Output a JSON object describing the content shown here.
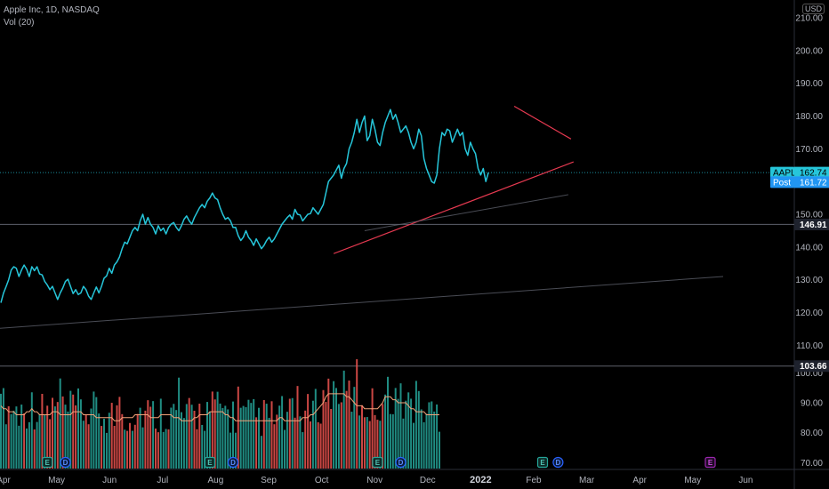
{
  "legend": {
    "symbol": "Apple Inc, 1D, NASDAQ",
    "indicator": "Vol (20)"
  },
  "currency": "USD",
  "colors": {
    "price": "#26c6da",
    "trend": "#e53950",
    "up": "#26a69a",
    "down": "#ef5350",
    "vol_ma": "#f4a37a",
    "bg": "#000000",
    "earnings": "#26a69a",
    "dividend": "#2962ff",
    "upcoming_earnings": "#9c27b0"
  },
  "chart_data": {
    "type": "line",
    "title": "Apple Inc, 1D, NASDAQ",
    "x_labels": [
      "Apr",
      "May",
      "Jun",
      "Jul",
      "Aug",
      "Sep",
      "Oct",
      "Nov",
      "Dec",
      "2022",
      "Feb",
      "Mar",
      "Apr",
      "May",
      "Jun"
    ],
    "y_ticks": [
      70,
      80,
      90,
      100,
      110,
      120,
      130,
      140,
      150,
      160,
      170,
      180,
      190,
      200,
      210
    ],
    "price_ylim": [
      98,
      215
    ],
    "price_series": {
      "name": "AAPL",
      "values": [
        123.0,
        125.9,
        127.9,
        130.0,
        133.0,
        134.0,
        133.5,
        131.0,
        133.0,
        134.5,
        133.2,
        131.0,
        134.0,
        132.8,
        134.0,
        131.8,
        131.5,
        129.5,
        128.4,
        127.0,
        128.0,
        126.0,
        124.0,
        126.0,
        127.5,
        129.5,
        130.2,
        128.0,
        125.8,
        127.0,
        125.5,
        126.0,
        128.0,
        127.0,
        125.0,
        124.0,
        126.0,
        127.8,
        126.0,
        128.0,
        130.5,
        131.2,
        133.5,
        132.0,
        134.5,
        135.5,
        137.0,
        139.5,
        141.5,
        141.0,
        143.0,
        145.0,
        146.0,
        145.0,
        148.0,
        150.0,
        147.0,
        149.0,
        147.0,
        146.0,
        144.0,
        146.5,
        145.0,
        145.8,
        144.0,
        146.0,
        147.0,
        147.5,
        146.0,
        145.0,
        146.5,
        148.5,
        149.5,
        148.0,
        147.0,
        149.0,
        150.5,
        152.0,
        153.0,
        152.0,
        154.0,
        155.0,
        156.5,
        155.0,
        154.5,
        152.0,
        150.0,
        148.5,
        149.0,
        148.0,
        146.0,
        146.0,
        143.5,
        142.0,
        143.0,
        145.0,
        143.0,
        142.0,
        140.5,
        142.5,
        141.0,
        139.5,
        140.5,
        142.0,
        143.0,
        141.5,
        142.5,
        144.0,
        145.5,
        147.0,
        148.0,
        149.0,
        149.8,
        148.5,
        151.5,
        150.0,
        149.8,
        148.0,
        149.0,
        150.0,
        150.2,
        152.0,
        151.0,
        150.0,
        151.5,
        153.0,
        156.5,
        160.0,
        161.0,
        162.0,
        163.5,
        165.0,
        161.0,
        164.0,
        165.5,
        170.0,
        172.0,
        175.0,
        179.0,
        175.0,
        178.0,
        180.0,
        172.5,
        174.0,
        179.0,
        176.0,
        172.0,
        171.0,
        175.0,
        178.0,
        180.0,
        182.0,
        179.0,
        180.5,
        178.0,
        175.0,
        176.0,
        177.0,
        175.0,
        172.0,
        170.0,
        172.0,
        176.0,
        174.0,
        167.0,
        164.0,
        162.0,
        160.0,
        159.5,
        162.0,
        170.0,
        175.0,
        174.0,
        176.0,
        175.5,
        172.0,
        174.0,
        176.0,
        174.0,
        175.0,
        170.0,
        168.0,
        172.0,
        170.0,
        168.5,
        164.0,
        162.0,
        164.0,
        160.0,
        162.74
      ]
    },
    "price_labels": [
      {
        "text": "AAPL",
        "value": "162.74",
        "price": 162.74
      },
      {
        "text": "Post",
        "value": "161.72",
        "price": 161.72
      },
      {
        "text": "",
        "value": "146.91",
        "price": 146.91
      }
    ],
    "volume_level": {
      "value": "103.66",
      "price": 103.66
    },
    "volume": {
      "ylim": [
        68,
        112
      ],
      "ma_values": [
        89,
        88,
        88,
        87,
        87,
        87,
        86,
        86,
        86,
        86,
        87,
        87,
        88,
        87,
        87,
        86,
        86,
        86,
        86,
        86,
        87,
        87,
        87,
        86,
        86,
        86,
        86,
        86,
        87,
        87,
        87,
        87,
        86,
        86,
        86,
        86,
        86,
        85,
        85,
        85,
        85,
        85,
        85,
        85,
        84,
        84,
        84,
        85,
        85,
        85,
        85,
        85,
        86,
        86,
        86,
        86,
        86,
        86,
        85,
        85,
        85,
        85,
        86,
        86,
        86,
        86,
        86,
        85,
        85,
        85,
        84,
        84,
        84,
        84,
        84,
        85,
        85,
        86,
        86,
        86,
        86,
        87,
        87,
        87,
        87,
        87,
        87,
        86,
        86,
        85,
        85,
        84,
        84,
        84,
        84,
        84,
        84,
        84,
        84,
        84,
        84,
        84,
        84,
        84,
        84,
        84,
        84,
        84,
        85,
        85,
        84,
        84,
        84,
        84,
        84,
        84,
        84,
        85,
        85,
        85,
        86,
        86,
        87,
        88,
        89,
        90,
        92,
        93,
        93,
        93,
        93,
        93,
        93,
        93,
        92,
        92,
        91,
        90,
        89,
        89,
        89,
        88,
        88,
        88,
        88,
        88,
        88,
        89,
        90,
        92,
        92,
        92,
        91,
        91,
        90,
        90,
        90,
        90,
        89,
        88,
        88,
        87,
        87,
        87,
        87,
        86,
        86,
        86,
        86,
        86,
        86
      ]
    },
    "trendlines": [
      {
        "name": "upper-trend",
        "from": {
          "i": 199,
          "price": 183
        },
        "to": {
          "i": 221,
          "price": 173
        }
      },
      {
        "name": "lower-trend",
        "from": {
          "i": 129,
          "price": 138
        },
        "to": {
          "i": 222,
          "price": 166
        }
      },
      {
        "name": "faint-trend",
        "from": {
          "i": 141,
          "price": 145
        },
        "to": {
          "i": 220,
          "price": 156
        }
      },
      {
        "name": "long-trend",
        "from": {
          "i": -4,
          "price": 115
        },
        "to": {
          "i": 280,
          "price": 131
        }
      }
    ],
    "events": [
      {
        "type": "earnings",
        "label": "E",
        "i": 18
      },
      {
        "type": "dividend",
        "label": "D",
        "i": 25
      },
      {
        "type": "earnings",
        "label": "E",
        "i": 81
      },
      {
        "type": "dividend",
        "label": "D",
        "i": 90
      },
      {
        "type": "earnings",
        "label": "E",
        "i": 146
      },
      {
        "type": "dividend",
        "label": "D",
        "i": 155
      },
      {
        "type": "earnings",
        "label": "E",
        "i": 210
      },
      {
        "type": "dividend",
        "label": "D",
        "i": 216
      },
      {
        "type": "upcoming_earnings",
        "label": "E",
        "i": 275
      }
    ]
  }
}
